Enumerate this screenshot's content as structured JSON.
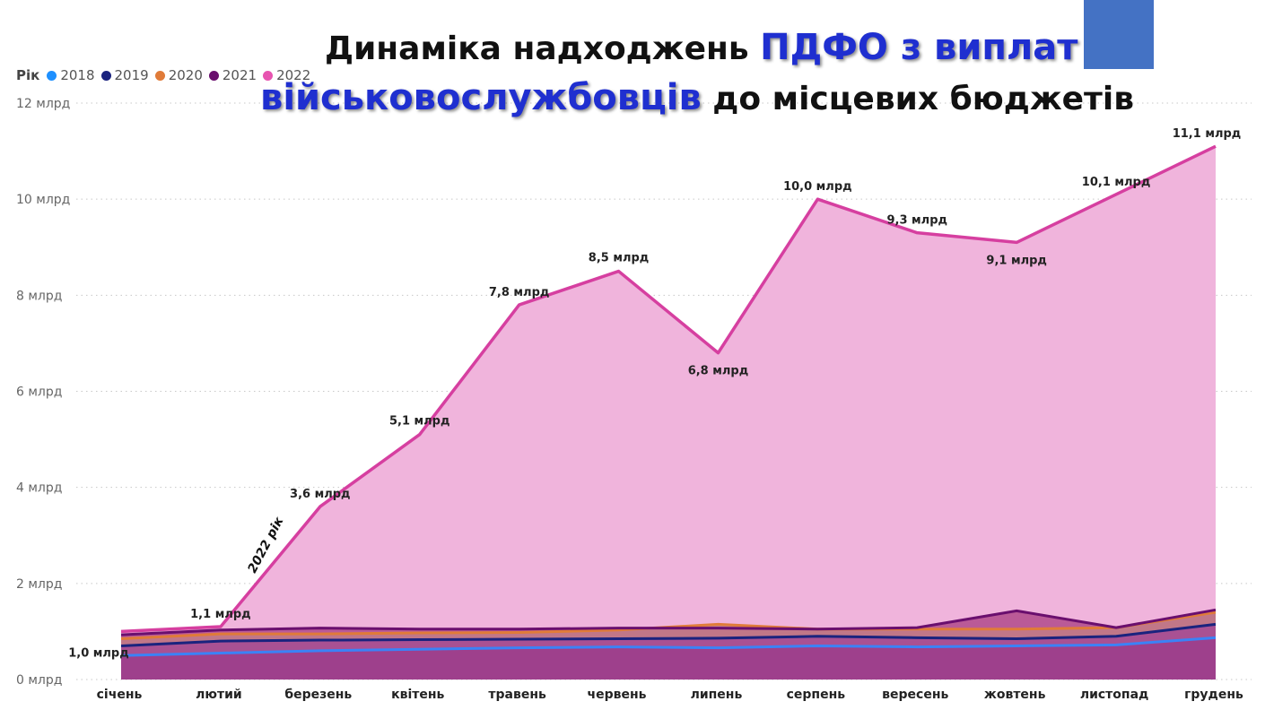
{
  "title": {
    "part1": "Динаміка надходжень ",
    "highlight1": "ПДФО з виплат",
    "highlight2": "військовослужбовців",
    "part2": " до місцевих бюджетів"
  },
  "legend": {
    "title": "Рік",
    "items": [
      {
        "label": "2018",
        "color": "#1e90ff"
      },
      {
        "label": "2019",
        "color": "#1a237e"
      },
      {
        "label": "2020",
        "color": "#e07b39"
      },
      {
        "label": "2021",
        "color": "#6a0f6e"
      },
      {
        "label": "2022",
        "color": "#e754b0"
      }
    ]
  },
  "annotation": "2022 рік",
  "chart_data": {
    "type": "area",
    "categories": [
      "січень",
      "лютий",
      "березень",
      "квітень",
      "травень",
      "червень",
      "липень",
      "серпень",
      "вересень",
      "жовтень",
      "листопад",
      "грудень"
    ],
    "y_ticks": [
      "0 млрд",
      "2 млрд",
      "4 млрд",
      "6 млрд",
      "8 млрд",
      "10 млрд",
      "12 млрд"
    ],
    "ylim": [
      0,
      12
    ],
    "grid": true,
    "legend_position": "top-left",
    "series": [
      {
        "name": "2018",
        "color": "#3b82f6",
        "values": [
          0.5,
          0.55,
          0.6,
          0.63,
          0.66,
          0.68,
          0.66,
          0.7,
          0.68,
          0.7,
          0.72,
          0.87
        ]
      },
      {
        "name": "2019",
        "color": "#1a237e",
        "values": [
          0.7,
          0.8,
          0.82,
          0.83,
          0.84,
          0.85,
          0.86,
          0.9,
          0.87,
          0.85,
          0.9,
          1.15
        ]
      },
      {
        "name": "2020",
        "color": "#e07b39",
        "values": [
          0.85,
          0.95,
          0.95,
          0.97,
          0.98,
          1.03,
          1.15,
          1.05,
          1.05,
          1.05,
          1.08,
          1.4
        ]
      },
      {
        "name": "2021",
        "color": "#6a0f6e",
        "values": [
          0.93,
          1.03,
          1.07,
          1.05,
          1.05,
          1.07,
          1.07,
          1.05,
          1.08,
          1.43,
          1.08,
          1.45
        ]
      },
      {
        "name": "2022",
        "color": "#d63fa0",
        "values": [
          1.0,
          1.1,
          3.6,
          5.1,
          7.8,
          8.5,
          6.8,
          10.0,
          9.3,
          9.1,
          10.1,
          11.1
        ],
        "labels": [
          "1,0 млрд",
          "1,1 млрд",
          "3,6 млрд",
          "5,1 млрд",
          "7,8 млрд",
          "8,5 млрд",
          "6,8 млрд",
          "10,0 млрд",
          "9,3 млрд",
          "9,1 млрд",
          "10,1 млрд",
          "11,1 млрд"
        ]
      }
    ]
  }
}
